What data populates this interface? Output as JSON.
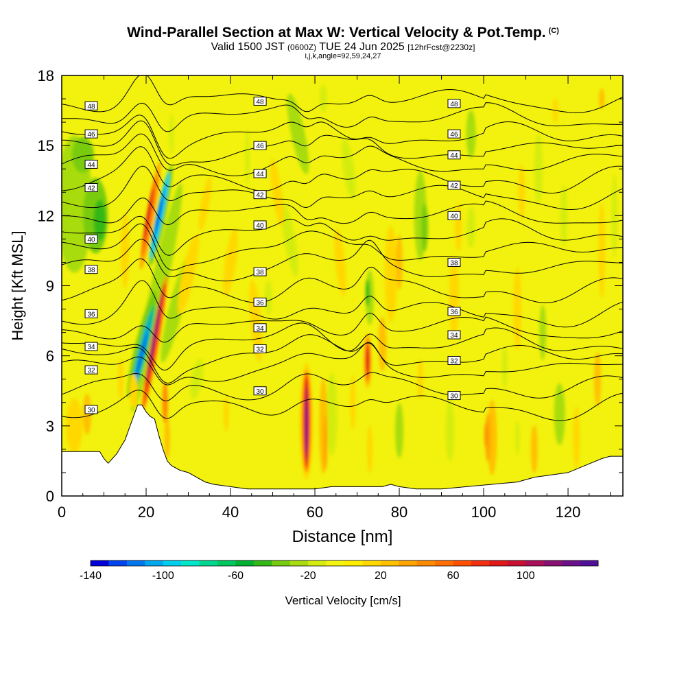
{
  "title": "Wind-Parallel Section at Max W: Vertical Velocity & Pot.Temp.",
  "title_mark": "(C)",
  "subtitle_parts": [
    "Valid 1500 JST ",
    "(0600Z)",
    " TUE 24 Jun 2025 ",
    "[12hrFcst@2230z]"
  ],
  "params": "i,j,k,angle=92,59,24,27",
  "chart_data": {
    "type": "heatmap",
    "xlabel": "Distance [nm]",
    "ylabel": "Height [Kft MSL]",
    "xlim": [
      0,
      133
    ],
    "ylim": [
      0,
      18
    ],
    "xticks": [
      0,
      20,
      40,
      60,
      80,
      100,
      120
    ],
    "yticks": [
      0,
      3,
      6,
      9,
      12,
      15,
      18
    ],
    "colorbar": {
      "label": "Vertical Velocity [cm/s]",
      "range": [
        -140,
        140
      ],
      "step": 10,
      "tick_labels": [
        "-140",
        "-100",
        "-60",
        "-20",
        "20",
        "60",
        "100"
      ],
      "colors": [
        "#0000d8",
        "#0044ee",
        "#0077ee",
        "#00a8ee",
        "#00cfee",
        "#00e6c8",
        "#00d890",
        "#00c860",
        "#00b030",
        "#34b818",
        "#78cc10",
        "#a8dc10",
        "#d4ec10",
        "#f4f410",
        "#ffee00",
        "#ffd800",
        "#ffc000",
        "#ffa400",
        "#ff8a00",
        "#ff6e00",
        "#ff5000",
        "#f03010",
        "#e01818",
        "#c81032",
        "#a8105a",
        "#881070",
        "#6a1088",
        "#501098"
      ]
    },
    "updraft_cores": [
      {
        "x": 21.5,
        "y_range": [
          3.5,
          13.8
        ],
        "w_max": 140
      },
      {
        "x": 58,
        "y_range": [
          0.5,
          5.4
        ],
        "w_max": 140
      },
      {
        "x": 72.5,
        "y_range": [
          4.8,
          6.8
        ],
        "w_max": 90
      }
    ],
    "downdraft_cores": [
      {
        "x": 19,
        "y_range": [
          3.8,
          8.5
        ],
        "w_min": -140
      },
      {
        "x": 23,
        "y_range": [
          10.8,
          13.5
        ],
        "w_min": -130
      }
    ],
    "theta_contours": {
      "unit": "label (pot. temp.)",
      "levels": [
        {
          "label": "30",
          "height_at_labels": [
            3.7,
            4.5,
            4.3
          ]
        },
        {
          "label": "32",
          "height_at_labels": [
            5.4,
            6.3,
            5.8
          ]
        },
        {
          "label": "34",
          "height_at_labels": [
            6.4,
            7.2,
            6.9
          ]
        },
        {
          "label": "36",
          "height_at_labels": [
            7.8,
            8.3,
            7.9
          ]
        },
        {
          "label": "38",
          "height_at_labels": [
            9.7,
            9.6,
            10.0
          ]
        },
        {
          "label": "40",
          "height_at_labels": [
            11.0,
            11.6,
            12.0
          ]
        },
        {
          "label": "42",
          "height_at_labels": [
            13.2,
            12.9,
            13.3
          ]
        },
        {
          "label": "44",
          "height_at_labels": [
            14.2,
            13.8,
            14.6
          ]
        },
        {
          "label": "46",
          "height_at_labels": [
            15.5,
            15.0,
            15.5
          ]
        },
        {
          "label": "48",
          "height_at_labels": [
            16.7,
            16.9,
            16.8
          ]
        }
      ]
    },
    "terrain": [
      [
        0,
        1.9
      ],
      [
        2,
        1.9
      ],
      [
        9,
        1.9
      ],
      [
        10,
        1.6
      ],
      [
        11,
        1.4
      ],
      [
        12,
        1.6
      ],
      [
        13,
        1.8
      ],
      [
        14,
        2.1
      ],
      [
        15,
        2.4
      ],
      [
        16,
        2.9
      ],
      [
        17,
        3.4
      ],
      [
        18,
        3.9
      ],
      [
        19,
        3.9
      ],
      [
        20,
        3.6
      ],
      [
        21,
        3.4
      ],
      [
        22,
        3.3
      ],
      [
        23,
        2.6
      ],
      [
        24,
        2.0
      ],
      [
        25,
        1.5
      ],
      [
        26,
        1.3
      ],
      [
        28,
        1.1
      ],
      [
        30,
        1.0
      ],
      [
        32,
        0.8
      ],
      [
        34,
        0.6
      ],
      [
        36,
        0.5
      ],
      [
        40,
        0.4
      ],
      [
        44,
        0.3
      ],
      [
        48,
        0.3
      ],
      [
        52,
        0.3
      ],
      [
        56,
        0.3
      ],
      [
        58,
        0.3
      ],
      [
        60,
        0.3
      ],
      [
        64,
        0.4
      ],
      [
        68,
        0.4
      ],
      [
        72,
        0.4
      ],
      [
        76,
        0.4
      ],
      [
        78,
        0.5
      ],
      [
        80,
        0.4
      ],
      [
        84,
        0.3
      ],
      [
        88,
        0.3
      ],
      [
        90,
        0.3
      ],
      [
        96,
        0.4
      ],
      [
        102,
        0.5
      ],
      [
        108,
        0.6
      ],
      [
        112,
        0.8
      ],
      [
        120,
        1.0
      ],
      [
        124,
        1.3
      ],
      [
        128,
        1.6
      ],
      [
        130,
        1.7
      ],
      [
        133,
        1.7
      ]
    ]
  }
}
